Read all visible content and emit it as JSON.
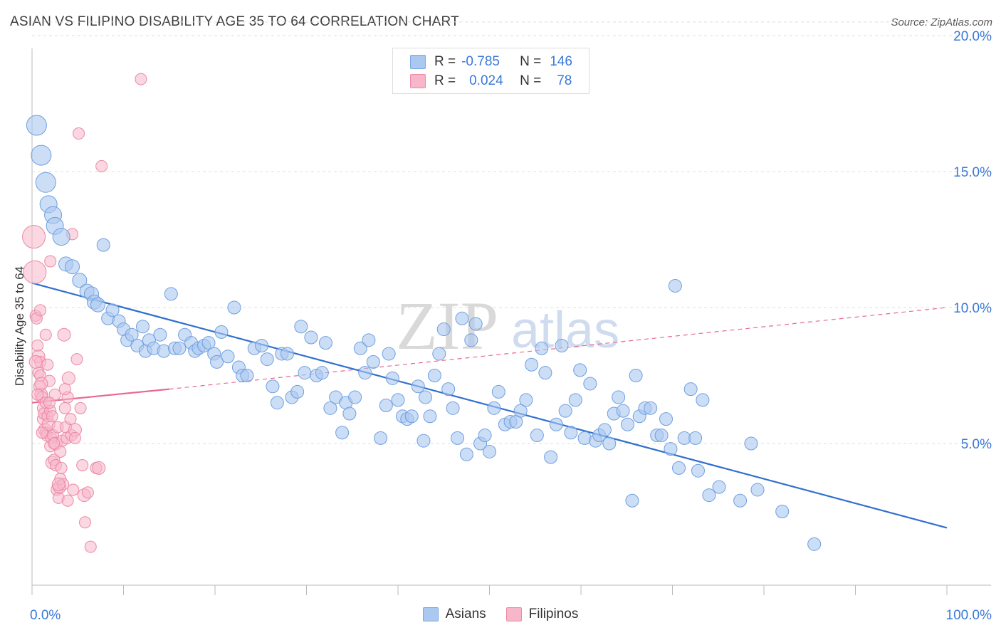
{
  "title": "ASIAN VS FILIPINO DISABILITY AGE 35 TO 64 CORRELATION CHART",
  "source": "Source: ZipAtlas.com",
  "watermark": {
    "zip": "ZIP",
    "atlas": "atlas"
  },
  "legend": {
    "rows": [
      {
        "r_label": "R =",
        "r_value": "-0.785",
        "n_label": "N =",
        "n_value": "146",
        "color": "#aac8f0",
        "border": "#7aa8e6"
      },
      {
        "r_label": "R =",
        "r_value": "0.024",
        "n_label": "N =",
        "n_value": "78",
        "color": "#f7b6ca",
        "border": "#ee8aa8"
      }
    ]
  },
  "bottom_legend": [
    {
      "label": "Asians",
      "color": "#aac8f0",
      "border": "#7aa8e6"
    },
    {
      "label": "Filipinos",
      "color": "#f7b6ca",
      "border": "#ee8aa8"
    }
  ],
  "chart_data": {
    "type": "scatter",
    "title": "ASIAN VS FILIPINO DISABILITY AGE 35 TO 64 CORRELATION CHART",
    "xlabel": "",
    "ylabel": "Disability Age 35 to 64",
    "xlim": [
      0,
      100
    ],
    "ylim": [
      0,
      21
    ],
    "x_tick_labels": [
      "0.0%",
      "100.0%"
    ],
    "y_ticks": [
      5,
      10,
      15,
      20
    ],
    "y_tick_labels": [
      "5.0%",
      "10.0%",
      "15.0%",
      "20.0%"
    ],
    "grid": true,
    "legend_position": "top-center",
    "colors": {
      "asians_fill": "#aac8f0",
      "asians_stroke": "#6f9fe0",
      "asians_line": "#2f6fd0",
      "filipinos_fill": "#f7b6ca",
      "filipinos_stroke": "#ec88a6",
      "filipinos_line": "#e8698f"
    },
    "series": [
      {
        "name": "Asians",
        "trend": {
          "x": [
            0,
            100
          ],
          "y": [
            10.9,
            1.9
          ],
          "style": "solid"
        },
        "points": [
          [
            0.5,
            16.7
          ],
          [
            1.0,
            15.6
          ],
          [
            1.5,
            14.6
          ],
          [
            1.8,
            13.8
          ],
          [
            2.3,
            13.4
          ],
          [
            2.5,
            13.0
          ],
          [
            3.2,
            12.6
          ],
          [
            3.7,
            11.6
          ],
          [
            4.4,
            11.5
          ],
          [
            5.2,
            11.0
          ],
          [
            6.0,
            10.6
          ],
          [
            6.5,
            10.5
          ],
          [
            6.8,
            10.2
          ],
          [
            7.2,
            10.1
          ],
          [
            7.8,
            12.3
          ],
          [
            8.3,
            9.6
          ],
          [
            8.8,
            9.9
          ],
          [
            9.5,
            9.5
          ],
          [
            10.0,
            9.2
          ],
          [
            10.4,
            8.8
          ],
          [
            10.9,
            9.0
          ],
          [
            11.5,
            8.6
          ],
          [
            12.1,
            9.3
          ],
          [
            12.4,
            8.4
          ],
          [
            12.8,
            8.8
          ],
          [
            13.3,
            8.5
          ],
          [
            14.0,
            9.0
          ],
          [
            14.4,
            8.4
          ],
          [
            15.2,
            10.5
          ],
          [
            15.6,
            8.5
          ],
          [
            16.1,
            8.5
          ],
          [
            16.7,
            9.0
          ],
          [
            17.4,
            8.7
          ],
          [
            17.8,
            8.4
          ],
          [
            18.2,
            8.5
          ],
          [
            18.8,
            8.6
          ],
          [
            19.3,
            8.7
          ],
          [
            19.9,
            8.3
          ],
          [
            20.2,
            8.0
          ],
          [
            20.7,
            9.1
          ],
          [
            21.4,
            8.2
          ],
          [
            22.1,
            10.0
          ],
          [
            22.6,
            7.8
          ],
          [
            23.0,
            7.5
          ],
          [
            23.5,
            7.5
          ],
          [
            24.3,
            8.5
          ],
          [
            25.1,
            8.6
          ],
          [
            25.7,
            8.1
          ],
          [
            26.3,
            7.1
          ],
          [
            26.8,
            6.5
          ],
          [
            27.3,
            8.3
          ],
          [
            27.9,
            8.3
          ],
          [
            28.4,
            6.7
          ],
          [
            29.0,
            6.9
          ],
          [
            29.4,
            9.3
          ],
          [
            29.8,
            7.6
          ],
          [
            30.5,
            8.9
          ],
          [
            31.1,
            7.5
          ],
          [
            31.7,
            7.6
          ],
          [
            32.1,
            8.7
          ],
          [
            32.6,
            6.3
          ],
          [
            33.2,
            6.7
          ],
          [
            33.9,
            5.4
          ],
          [
            34.3,
            6.5
          ],
          [
            34.7,
            6.1
          ],
          [
            35.3,
            6.7
          ],
          [
            35.9,
            8.5
          ],
          [
            36.4,
            7.6
          ],
          [
            36.8,
            8.8
          ],
          [
            37.3,
            8.0
          ],
          [
            38.1,
            5.2
          ],
          [
            38.7,
            6.4
          ],
          [
            39.4,
            7.4
          ],
          [
            40.0,
            6.6
          ],
          [
            40.5,
            6.0
          ],
          [
            41.0,
            5.9
          ],
          [
            41.5,
            6.0
          ],
          [
            42.2,
            7.1
          ],
          [
            42.8,
            5.1
          ],
          [
            43.5,
            6.0
          ],
          [
            44.0,
            7.5
          ],
          [
            44.5,
            8.3
          ],
          [
            45.0,
            9.2
          ],
          [
            45.5,
            7.0
          ],
          [
            46.0,
            6.3
          ],
          [
            46.5,
            5.2
          ],
          [
            47.0,
            9.6
          ],
          [
            47.5,
            4.6
          ],
          [
            48.0,
            8.8
          ],
          [
            48.5,
            9.4
          ],
          [
            49.0,
            5.0
          ],
          [
            49.5,
            5.3
          ],
          [
            50.0,
            4.7
          ],
          [
            50.5,
            6.3
          ],
          [
            51.0,
            6.9
          ],
          [
            51.7,
            5.7
          ],
          [
            52.3,
            5.8
          ],
          [
            52.9,
            5.8
          ],
          [
            53.4,
            6.2
          ],
          [
            54.0,
            6.6
          ],
          [
            54.6,
            7.9
          ],
          [
            55.2,
            5.3
          ],
          [
            55.7,
            8.5
          ],
          [
            56.1,
            7.6
          ],
          [
            56.7,
            4.5
          ],
          [
            57.3,
            5.7
          ],
          [
            57.9,
            8.6
          ],
          [
            58.3,
            6.2
          ],
          [
            58.9,
            5.4
          ],
          [
            59.4,
            6.6
          ],
          [
            59.9,
            7.7
          ],
          [
            60.4,
            5.2
          ],
          [
            61.0,
            7.2
          ],
          [
            61.6,
            5.1
          ],
          [
            62.0,
            5.3
          ],
          [
            62.6,
            5.5
          ],
          [
            63.1,
            5.0
          ],
          [
            63.6,
            6.1
          ],
          [
            64.1,
            6.7
          ],
          [
            64.6,
            6.2
          ],
          [
            65.1,
            5.7
          ],
          [
            65.6,
            2.9
          ],
          [
            66.0,
            7.5
          ],
          [
            66.4,
            6.0
          ],
          [
            67.0,
            6.3
          ],
          [
            67.6,
            6.3
          ],
          [
            68.3,
            5.3
          ],
          [
            68.8,
            5.3
          ],
          [
            69.3,
            5.9
          ],
          [
            69.8,
            4.8
          ],
          [
            70.3,
            10.8
          ],
          [
            70.7,
            4.1
          ],
          [
            71.3,
            5.2
          ],
          [
            72.0,
            7.0
          ],
          [
            72.5,
            5.2
          ],
          [
            72.8,
            4.0
          ],
          [
            73.3,
            6.6
          ],
          [
            74.0,
            3.1
          ],
          [
            75.1,
            3.4
          ],
          [
            77.4,
            2.9
          ],
          [
            78.6,
            5.0
          ],
          [
            79.3,
            3.3
          ],
          [
            85.5,
            1.3
          ],
          [
            82.0,
            2.5
          ],
          [
            39.0,
            8.3
          ],
          [
            43.0,
            6.7
          ]
        ]
      },
      {
        "name": "Filipinos",
        "trend": {
          "x": [
            0,
            15,
            100
          ],
          "y": [
            6.5,
            7.0,
            10.0
          ],
          "style": "solid-then-dashed"
        },
        "points": [
          [
            0.2,
            12.6
          ],
          [
            0.3,
            11.3
          ],
          [
            0.4,
            9.7
          ],
          [
            0.5,
            9.6
          ],
          [
            0.6,
            8.6
          ],
          [
            0.7,
            8.2
          ],
          [
            0.7,
            7.6
          ],
          [
            0.8,
            7.1
          ],
          [
            0.9,
            7.5
          ],
          [
            0.9,
            8.0
          ],
          [
            1.0,
            6.8
          ],
          [
            1.1,
            6.7
          ],
          [
            1.2,
            6.3
          ],
          [
            1.2,
            5.9
          ],
          [
            1.3,
            6.1
          ],
          [
            1.4,
            5.5
          ],
          [
            1.5,
            6.5
          ],
          [
            1.5,
            5.4
          ],
          [
            1.6,
            5.3
          ],
          [
            1.7,
            6.0
          ],
          [
            1.8,
            5.7
          ],
          [
            1.9,
            7.3
          ],
          [
            2.0,
            4.9
          ],
          [
            2.0,
            6.2
          ],
          [
            2.1,
            5.2
          ],
          [
            2.2,
            4.3
          ],
          [
            2.2,
            6.0
          ],
          [
            2.3,
            5.3
          ],
          [
            2.4,
            4.4
          ],
          [
            2.5,
            6.8
          ],
          [
            2.6,
            5.0
          ],
          [
            2.6,
            4.2
          ],
          [
            2.7,
            3.3
          ],
          [
            2.8,
            5.6
          ],
          [
            2.9,
            3.0
          ],
          [
            3.0,
            3.4
          ],
          [
            3.1,
            3.7
          ],
          [
            3.2,
            4.1
          ],
          [
            3.3,
            5.1
          ],
          [
            3.4,
            3.5
          ],
          [
            3.5,
            9.0
          ],
          [
            3.6,
            6.3
          ],
          [
            3.7,
            5.6
          ],
          [
            3.8,
            5.2
          ],
          [
            3.9,
            2.9
          ],
          [
            4.0,
            7.4
          ],
          [
            4.2,
            5.9
          ],
          [
            4.3,
            5.3
          ],
          [
            4.4,
            12.7
          ],
          [
            4.5,
            3.3
          ],
          [
            4.7,
            5.5
          ],
          [
            4.9,
            8.1
          ],
          [
            5.1,
            16.4
          ],
          [
            5.3,
            6.3
          ],
          [
            5.5,
            4.2
          ],
          [
            5.7,
            3.1
          ],
          [
            5.8,
            2.1
          ],
          [
            6.1,
            3.2
          ],
          [
            6.4,
            1.2
          ],
          [
            7.0,
            4.1
          ],
          [
            7.3,
            4.1
          ],
          [
            7.6,
            15.2
          ],
          [
            11.9,
            18.4
          ],
          [
            2.0,
            11.7
          ],
          [
            1.5,
            9.0
          ],
          [
            0.4,
            8.0
          ],
          [
            0.6,
            6.8
          ],
          [
            3.9,
            6.7
          ],
          [
            0.9,
            9.9
          ],
          [
            1.7,
            7.9
          ],
          [
            2.9,
            3.5
          ],
          [
            1.1,
            5.4
          ],
          [
            3.1,
            4.7
          ],
          [
            4.7,
            5.2
          ],
          [
            2.4,
            5.0
          ],
          [
            1.0,
            7.2
          ],
          [
            1.9,
            6.5
          ],
          [
            3.6,
            7.0
          ]
        ]
      }
    ]
  }
}
